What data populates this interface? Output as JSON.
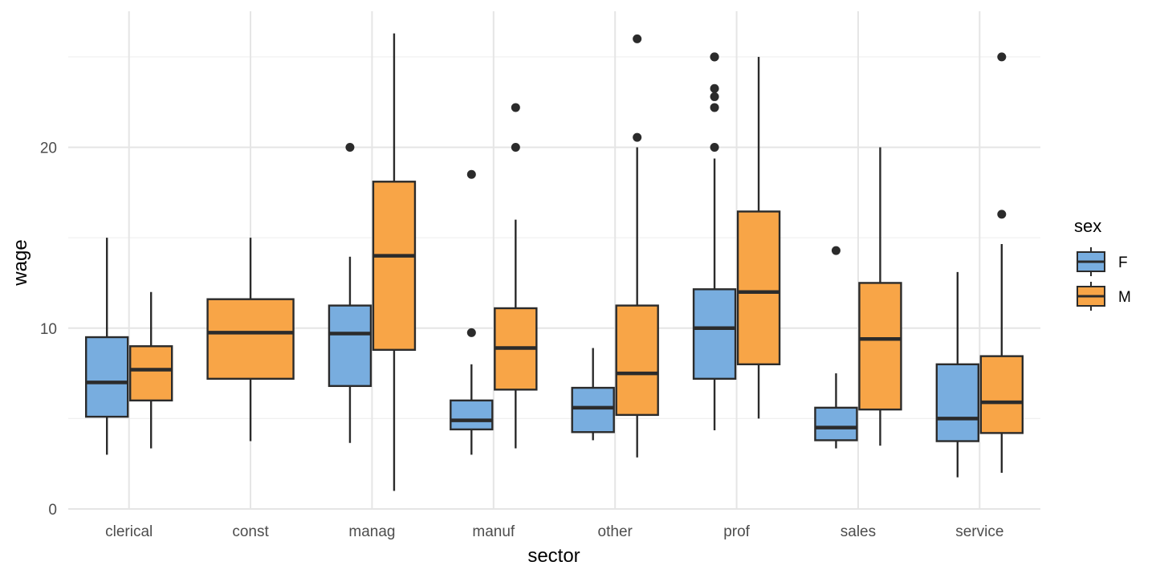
{
  "chart_data": {
    "type": "boxplot",
    "xlabel": "sector",
    "ylabel": "wage",
    "ylim": [
      -0.7,
      26.8
    ],
    "yticks": [
      0,
      10,
      20
    ],
    "grid": true,
    "categories": [
      "clerical",
      "const",
      "manag",
      "manuf",
      "other",
      "prof",
      "sales",
      "service"
    ],
    "legend": {
      "title": "sex",
      "position": "right",
      "entries": [
        {
          "label": "F",
          "color": "#78ADDF"
        },
        {
          "label": "M",
          "color": "#F8A547"
        }
      ]
    },
    "series": [
      {
        "name": "F",
        "color": "#78ADDF",
        "boxes": [
          {
            "category": "clerical",
            "whisker_low": 3.0,
            "q1": 5.1,
            "median": 7.0,
            "q3": 9.5,
            "whisker_high": 15.0,
            "outliers": []
          },
          {
            "category": "manag",
            "whisker_low": 3.65,
            "q1": 6.8,
            "median": 9.7,
            "q3": 11.25,
            "whisker_high": 13.95,
            "outliers": [
              20.0
            ]
          },
          {
            "category": "manuf",
            "whisker_low": 3.0,
            "q1": 4.4,
            "median": 4.9,
            "q3": 6.0,
            "whisker_high": 8.0,
            "outliers": [
              9.75,
              18.5
            ]
          },
          {
            "category": "other",
            "whisker_low": 3.8,
            "q1": 4.25,
            "median": 5.6,
            "q3": 6.7,
            "whisker_high": 8.9,
            "outliers": []
          },
          {
            "category": "prof",
            "whisker_low": 4.35,
            "q1": 7.2,
            "median": 10.0,
            "q3": 12.15,
            "whisker_high": 19.38,
            "outliers": [
              20.0,
              22.2,
              22.8,
              23.25,
              25.0,
              25.0
            ]
          },
          {
            "category": "sales",
            "whisker_low": 3.35,
            "q1": 3.8,
            "median": 4.5,
            "q3": 5.6,
            "whisker_high": 7.5,
            "outliers": [
              14.29
            ]
          },
          {
            "category": "service",
            "whisker_low": 1.75,
            "q1": 3.75,
            "median": 5.0,
            "q3": 8.0,
            "whisker_high": 13.1,
            "outliers": []
          }
        ]
      },
      {
        "name": "M",
        "color": "#F8A547",
        "boxes": [
          {
            "category": "clerical",
            "whisker_low": 3.35,
            "q1": 6.0,
            "median": 7.7,
            "q3": 9.0,
            "whisker_high": 12.0,
            "outliers": []
          },
          {
            "category": "const",
            "whisker_low": 3.75,
            "q1": 7.2,
            "median": 9.75,
            "q3": 11.6,
            "whisker_high": 15.0,
            "outliers": []
          },
          {
            "category": "manag",
            "whisker_low": 1.0,
            "q1": 8.8,
            "median": 14.0,
            "q3": 18.1,
            "whisker_high": 26.3,
            "outliers": []
          },
          {
            "category": "manuf",
            "whisker_low": 3.35,
            "q1": 6.6,
            "median": 8.9,
            "q3": 11.1,
            "whisker_high": 16.0,
            "outliers": [
              20.0,
              22.2
            ]
          },
          {
            "category": "other",
            "whisker_low": 2.85,
            "q1": 5.2,
            "median": 7.5,
            "q3": 11.25,
            "whisker_high": 20.0,
            "outliers": [
              20.55,
              26.0
            ]
          },
          {
            "category": "prof",
            "whisker_low": 5.0,
            "q1": 8.0,
            "median": 12.0,
            "q3": 16.45,
            "whisker_high": 25.0,
            "outliers": []
          },
          {
            "category": "sales",
            "whisker_low": 3.5,
            "q1": 5.5,
            "median": 9.4,
            "q3": 12.5,
            "whisker_high": 20.0,
            "outliers": []
          },
          {
            "category": "service",
            "whisker_low": 2.0,
            "q1": 4.2,
            "median": 5.9,
            "q3": 8.45,
            "whisker_high": 14.65,
            "outliers": [
              16.3,
              25.0
            ]
          }
        ]
      }
    ]
  }
}
